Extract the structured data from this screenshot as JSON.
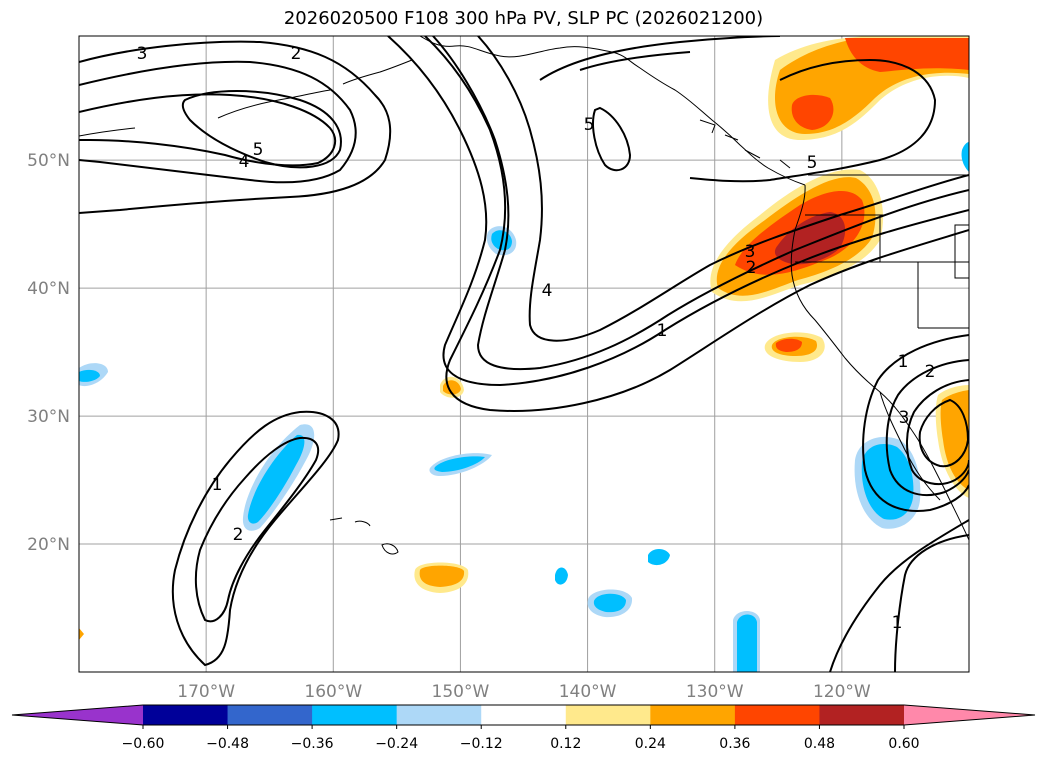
{
  "title": "2026020500 F108 300 hPa PV, SLP PC (2026021200)",
  "map": {
    "lat_labels": [
      "50°N",
      "40°N",
      "30°N",
      "20°N"
    ],
    "lon_labels": [
      "170°W",
      "160°W",
      "150°W",
      "140°W",
      "130°W",
      "120°W"
    ],
    "lat_values": [
      50,
      40,
      30,
      20
    ],
    "lon_values": [
      -170,
      -160,
      -150,
      -140,
      -130,
      -120
    ],
    "contour_labels": [
      {
        "id": "c3a",
        "text": "3"
      },
      {
        "id": "c2a",
        "text": "2"
      },
      {
        "id": "c5a",
        "text": "5"
      },
      {
        "id": "c4a",
        "text": "4"
      },
      {
        "id": "c5b",
        "text": "5"
      },
      {
        "id": "c4b",
        "text": "4"
      },
      {
        "id": "c3b",
        "text": "3"
      },
      {
        "id": "c2b",
        "text": "2"
      },
      {
        "id": "c1a",
        "text": "1"
      },
      {
        "id": "c5c",
        "text": "5"
      },
      {
        "id": "c1b",
        "text": "1"
      },
      {
        "id": "c2c",
        "text": "2"
      },
      {
        "id": "c3c",
        "text": "3"
      },
      {
        "id": "c1c",
        "text": "1"
      },
      {
        "id": "c2d",
        "text": "2"
      },
      {
        "id": "c1d",
        "text": "1"
      }
    ]
  },
  "colorbar": {
    "ticks": [
      "−0.60",
      "−0.48",
      "−0.36",
      "−0.24",
      "−0.12",
      "0.12",
      "0.24",
      "0.36",
      "0.48",
      "0.60"
    ],
    "colors": [
      "#9933cc",
      "#000099",
      "#3366cc",
      "#00bfff",
      "#add8f7",
      "#ffffff",
      "#ffe98c",
      "#ffa500",
      "#ff4500",
      "#b22222",
      "#ff88aa"
    ]
  }
}
